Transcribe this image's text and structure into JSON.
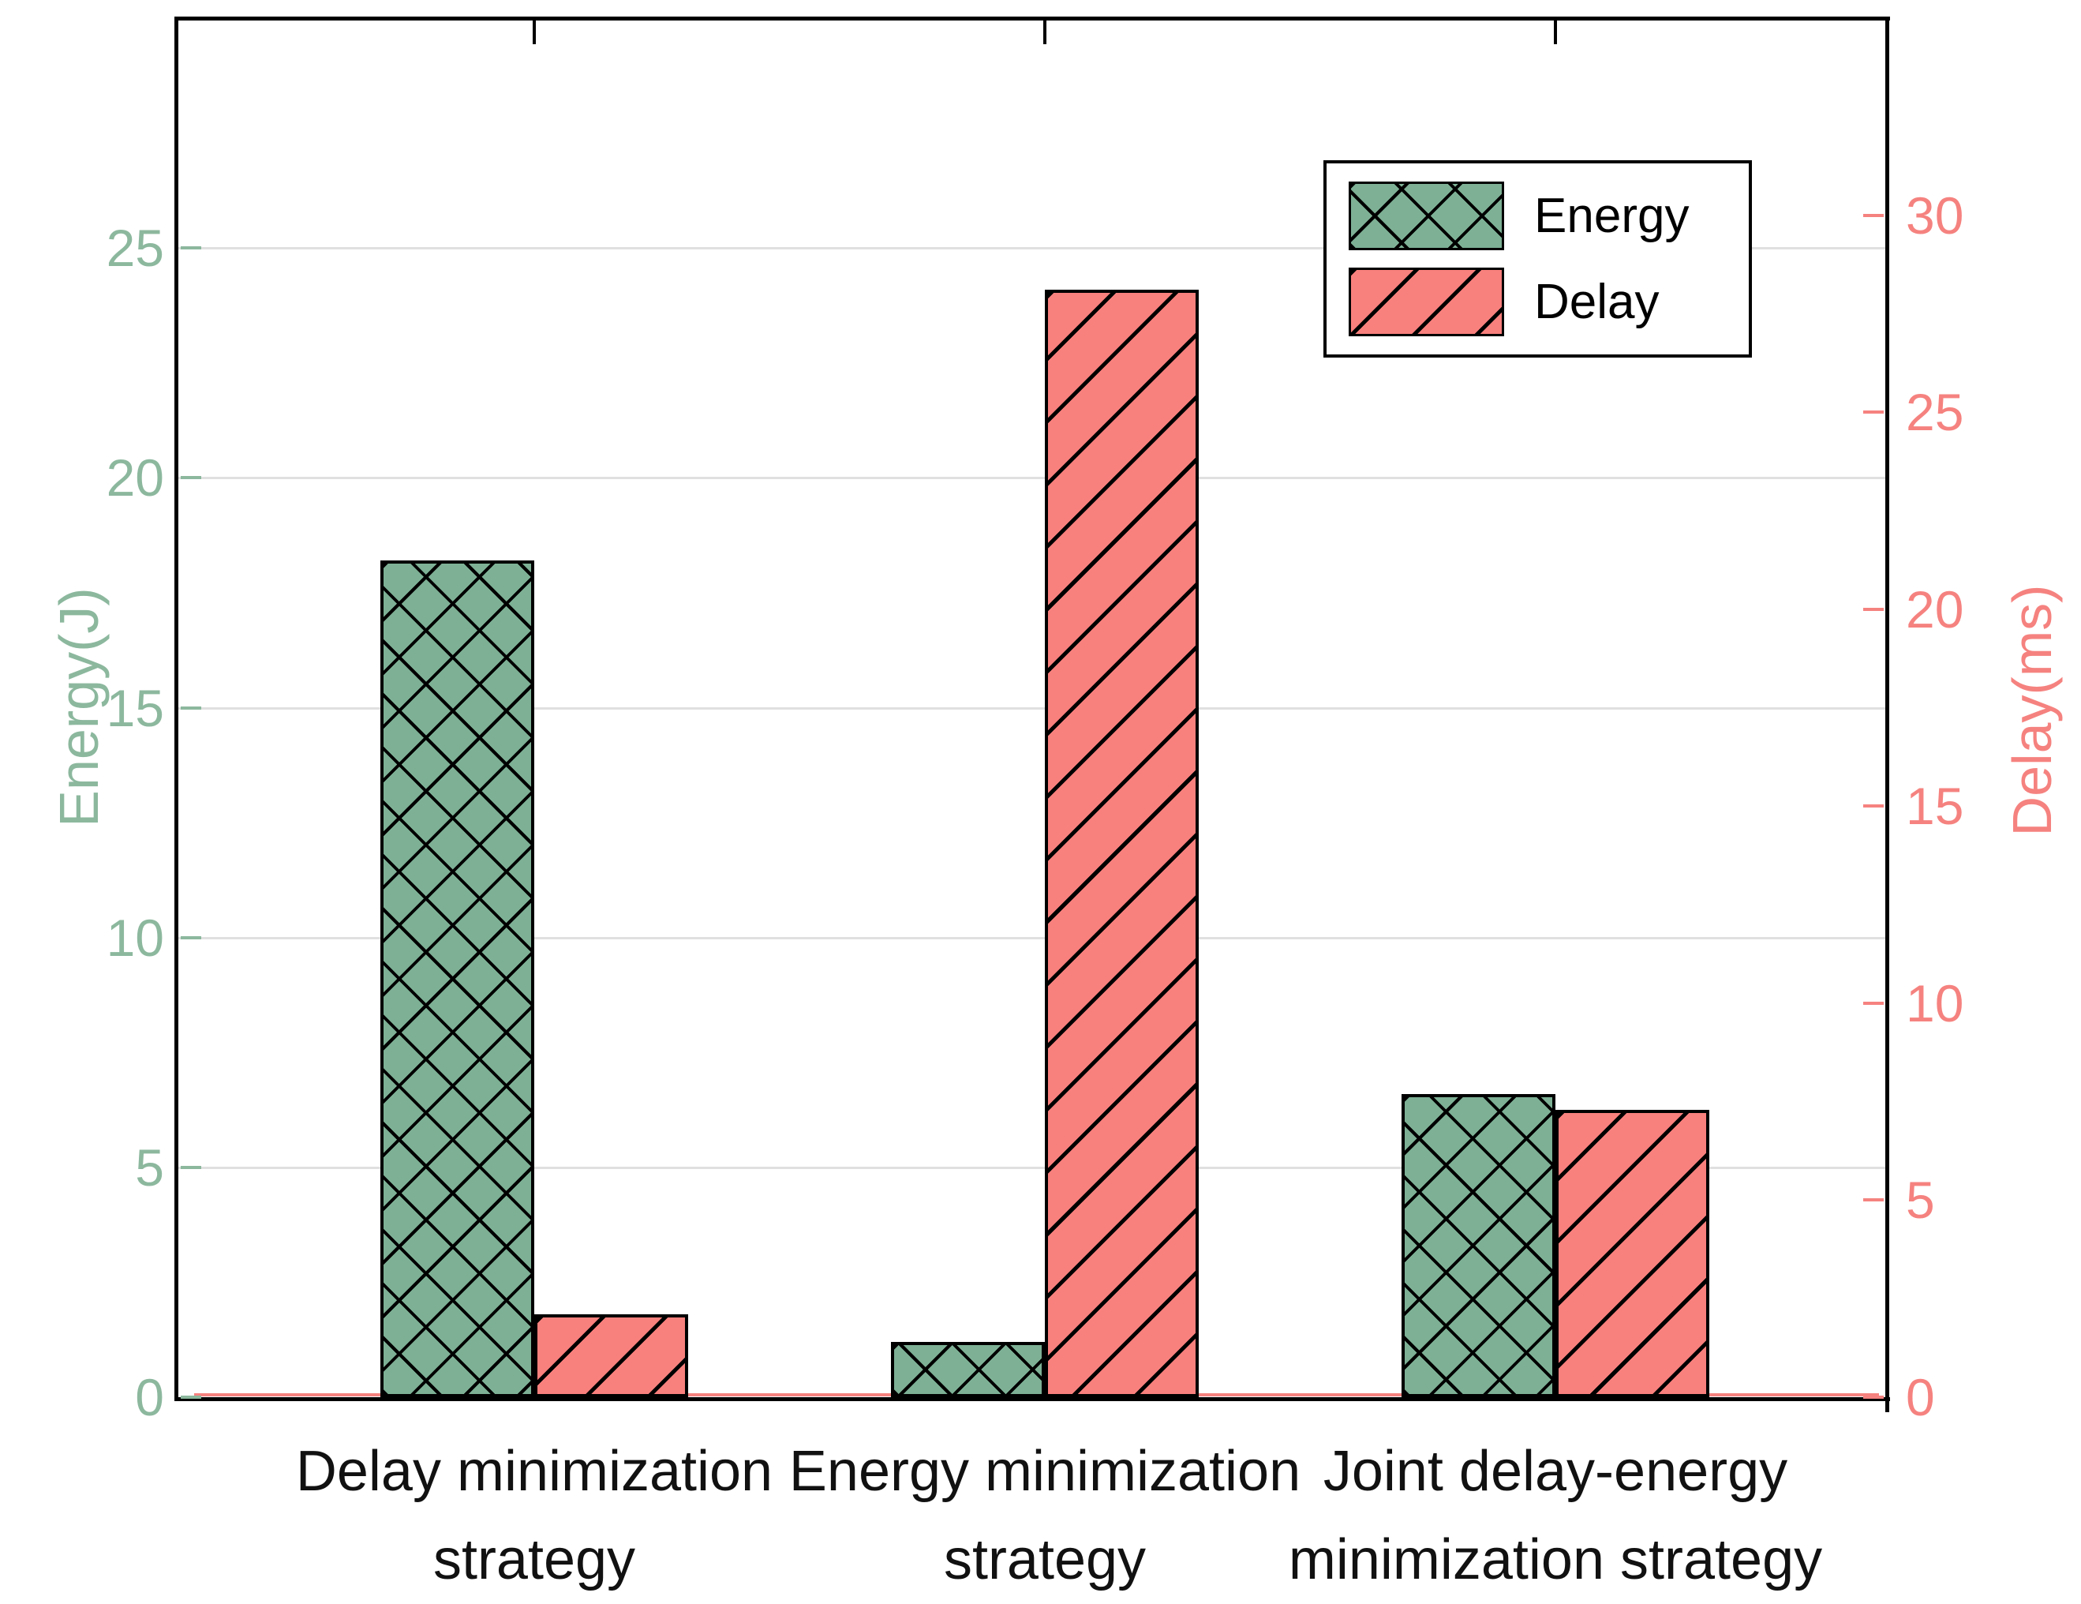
{
  "colors": {
    "energy_fill": "#7db095",
    "energy_text": "#8cb89e",
    "delay_fill": "#f8807d",
    "delay_text": "#f5827f",
    "grid": "#e0e0e0",
    "axis": "#000000"
  },
  "legend": {
    "items": [
      {
        "label": "Energy",
        "swatch": "energy-crosshatch"
      },
      {
        "label": "Delay",
        "swatch": "delay-diagonal-hatch"
      }
    ]
  },
  "left_axis": {
    "label": "Energy(J)",
    "ticks": [
      0,
      5,
      10,
      15,
      20,
      25
    ]
  },
  "right_axis": {
    "label": "Delay(ms)",
    "ticks": [
      0,
      5,
      10,
      15,
      20,
      25,
      30
    ]
  },
  "chart_data": {
    "type": "bar",
    "categories": [
      "Delay minimization strategy",
      "Energy minimization strategy",
      "Joint delay-energy minimization strategy"
    ],
    "categories_lines": [
      [
        "Delay minimization",
        "strategy"
      ],
      [
        "Energy minimization",
        "strategy"
      ],
      [
        "Joint delay-energy",
        "minimization strategy"
      ]
    ],
    "series": [
      {
        "name": "Energy",
        "axis": "left",
        "unit": "J",
        "values": [
          18.2,
          1.2,
          6.6
        ]
      },
      {
        "name": "Delay",
        "axis": "right",
        "unit": "ms",
        "values": [
          2.1,
          28.1,
          7.3
        ]
      }
    ],
    "title": "",
    "ylabel_left": "Energy(J)",
    "ylabel_right": "Delay(ms)",
    "ylim_left": [
      0,
      30
    ],
    "ylim_right": [
      0,
      35
    ],
    "gridline_values_left": [
      5,
      10,
      15,
      20,
      25
    ],
    "grid": "horizontal",
    "legend_position": "upper-right-inside"
  }
}
